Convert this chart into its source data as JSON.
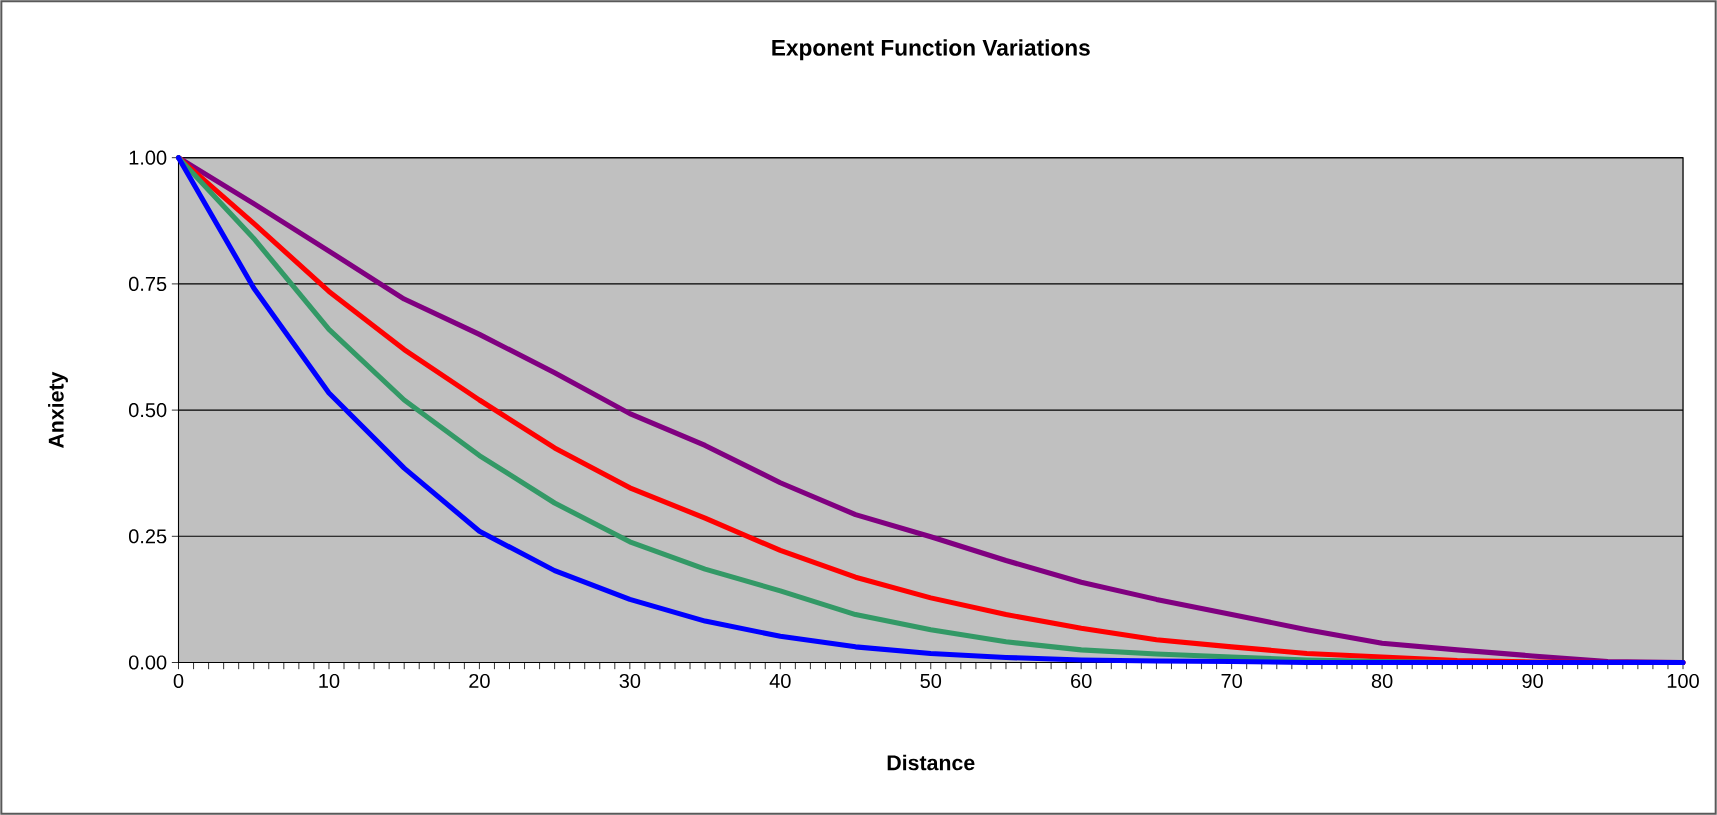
{
  "chart_data": {
    "type": "line",
    "title": "Exponent Function Variations",
    "xlabel": "Distance",
    "ylabel": "Anxiety",
    "x": [
      0,
      5,
      10,
      15,
      20,
      25,
      30,
      35,
      40,
      45,
      50,
      55,
      60,
      65,
      70,
      75,
      80,
      85,
      90,
      95,
      100
    ],
    "series": [
      {
        "color": "#800080",
        "values": [
          1,
          0.909,
          0.815,
          0.72,
          0.65,
          0.574,
          0.493,
          0.43,
          0.356,
          0.293,
          0.249,
          0.202,
          0.159,
          0.125,
          0.095,
          0.065,
          0.038,
          0.025,
          0.013,
          0.002,
          0
        ]
      },
      {
        "color": "#ff0000",
        "values": [
          1,
          0.87,
          0.735,
          0.62,
          0.52,
          0.425,
          0.346,
          0.286,
          0.222,
          0.169,
          0.128,
          0.095,
          0.068,
          0.045,
          0.031,
          0.018,
          0.011,
          0.004,
          0.001,
          0,
          0
        ]
      },
      {
        "color": "#339966",
        "values": [
          1,
          0.84,
          0.66,
          0.52,
          0.41,
          0.316,
          0.239,
          0.185,
          0.142,
          0.095,
          0.065,
          0.041,
          0.025,
          0.017,
          0.011,
          0.005,
          0.002,
          0,
          null,
          null,
          null
        ]
      },
      {
        "color": "#0000ff",
        "values": [
          1,
          0.742,
          0.534,
          0.385,
          0.26,
          0.182,
          0.125,
          0.082,
          0.052,
          0.031,
          0.018,
          0.01,
          0.005,
          0.003,
          0.002,
          0,
          0,
          0,
          0,
          0,
          0
        ]
      }
    ],
    "xlim": [
      0,
      100
    ],
    "xticks": [
      0,
      10,
      20,
      30,
      40,
      50,
      60,
      70,
      80,
      90,
      100
    ],
    "ylim": [
      0,
      1
    ],
    "yticks": [
      {
        "value": 0,
        "label": "0.00"
      },
      {
        "value": 0.25,
        "label": "0.25"
      },
      {
        "value": 0.5,
        "label": "0.50"
      },
      {
        "value": 0.75,
        "label": "0.75"
      },
      {
        "value": 1,
        "label": "1.00"
      }
    ],
    "grid": "y"
  }
}
